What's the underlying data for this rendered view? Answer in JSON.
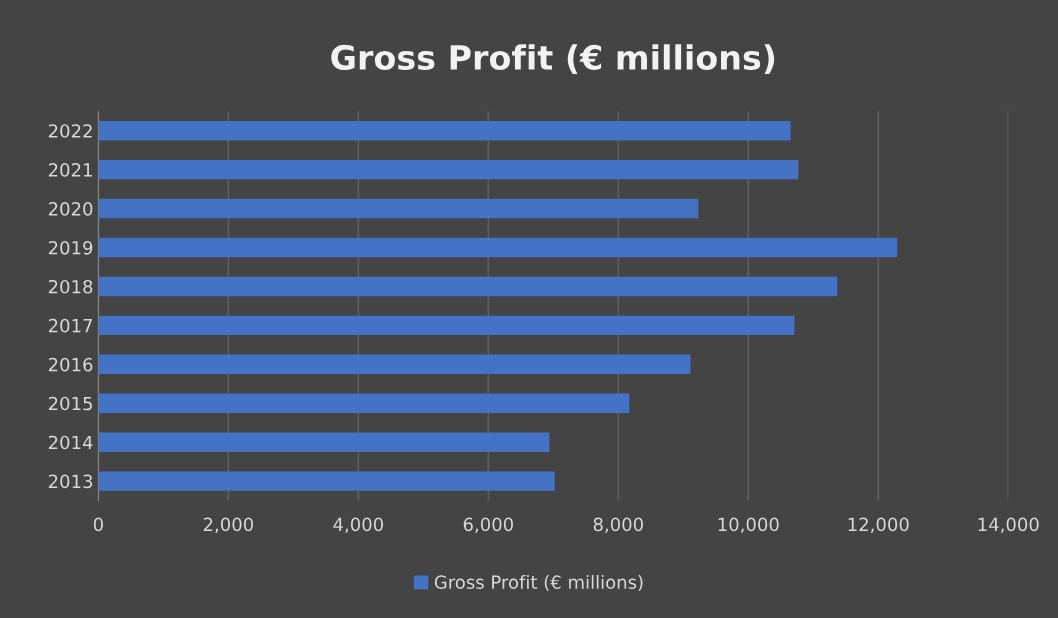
{
  "chart_data": {
    "type": "bar",
    "orientation": "horizontal",
    "title": "Gross Profit (€ millions)",
    "categories": [
      "2022",
      "2021",
      "2020",
      "2019",
      "2018",
      "2017",
      "2016",
      "2015",
      "2014",
      "2013"
    ],
    "series": [
      {
        "name": "Gross Profit (€ millions)",
        "color": "#4472c4",
        "values": [
          10650,
          10770,
          9230,
          12290,
          11370,
          10710,
          9110,
          8170,
          6940,
          7020
        ]
      }
    ],
    "xlim": [
      0,
      14000
    ],
    "xticks": [
      {
        "value": 0,
        "label": "0"
      },
      {
        "value": 2000,
        "label": "2,000"
      },
      {
        "value": 4000,
        "label": "4,000"
      },
      {
        "value": 6000,
        "label": "6,000"
      },
      {
        "value": 8000,
        "label": "8,000"
      },
      {
        "value": 10000,
        "label": "10,000"
      },
      {
        "value": 12000,
        "label": "12,000"
      },
      {
        "value": 14000,
        "label": "14,000"
      }
    ],
    "grid": "x",
    "legend": "bottom"
  }
}
